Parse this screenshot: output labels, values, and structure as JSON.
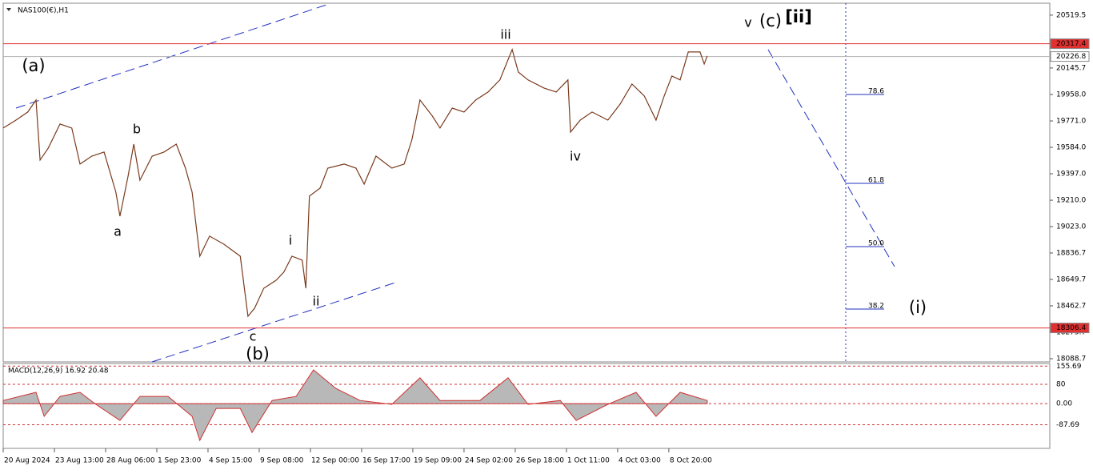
{
  "chart_data": {
    "type": "line",
    "title": "NAS100(€),H1",
    "color": "#7a3b1e",
    "xlim": [
      0,
      20.44
    ],
    "ylim": [
      18066,
      20604
    ],
    "xticks": [
      {
        "value": 0,
        "label": "20 Aug 2024"
      },
      {
        "value": 1,
        "label": "23 Aug 13:00"
      },
      {
        "value": 2,
        "label": "28 Aug 06:00"
      },
      {
        "value": 3,
        "label": "1 Sep 23:00"
      },
      {
        "value": 4,
        "label": "4 Sep 15:00"
      },
      {
        "value": 5,
        "label": "9 Sep 08:00"
      },
      {
        "value": 6,
        "label": "12 Sep 00:00"
      },
      {
        "value": 7,
        "label": "16 Sep 17:00"
      },
      {
        "value": 8,
        "label": "19 Sep 09:00"
      },
      {
        "value": 9,
        "label": "24 Sep 02:00"
      },
      {
        "value": 10,
        "label": "26 Sep 18:00"
      },
      {
        "value": 11,
        "label": "1 Oct 11:00"
      },
      {
        "value": 12,
        "label": "4 Oct 03:00"
      },
      {
        "value": 13,
        "label": "8 Oct 20:00"
      }
    ],
    "yticks": [
      20519.5,
      20145.7,
      {
        "value": 19958,
        "label": "19958.0"
      },
      {
        "value": 19771,
        "label": "19771.0"
      },
      {
        "value": 19584,
        "label": "19584.0"
      },
      {
        "value": 19397,
        "label": "19397.0"
      },
      {
        "value": 19210,
        "label": "19210.0"
      },
      {
        "value": 19023,
        "label": "19023.0"
      },
      18836.7,
      18649.7,
      18462.7,
      18275.7,
      18088.7
    ],
    "levels": [
      {
        "value": 20317.4,
        "color": "#e03030"
      },
      {
        "value": 20226.8,
        "color": "#b0b0b0"
      },
      {
        "value": 18306.4,
        "color": "#e03030"
      }
    ],
    "x": [
      0,
      0.25,
      0.48,
      0.64,
      0.72,
      0.88,
      1.11,
      1.34,
      1.5,
      1.73,
      1.97,
      2.2,
      2.28,
      2.44,
      2.55,
      2.67,
      2.91,
      3.14,
      3.38,
      3.56,
      3.69,
      3.84,
      4.03,
      4.31,
      4.63,
      4.78,
      4.91,
      5.09,
      5.33,
      5.48,
      5.64,
      5.84,
      5.91,
      5.98,
      6.19,
      6.34,
      6.66,
      6.89,
      7.05,
      7.28,
      7.59,
      7.83,
      7.98,
      8.14,
      8.38,
      8.53,
      8.77,
      9.0,
      9.23,
      9.47,
      9.7,
      9.94,
      10.06,
      10.25,
      10.56,
      10.8,
      11.03,
      11.08,
      11.27,
      11.5,
      11.81,
      12.05,
      12.28,
      12.52,
      12.75,
      12.91,
      13.06,
      13.22,
      13.38,
      13.61,
      13.69,
      13.75
    ],
    "values": [
      19721,
      19777,
      19834,
      19919,
      19494,
      19579,
      19749,
      19721,
      19466,
      19522,
      19551,
      19267,
      19097,
      19381,
      19607,
      19352,
      19522,
      19551,
      19607,
      19437,
      19267,
      18814,
      18956,
      18899,
      18814,
      18389,
      18446,
      18587,
      18644,
      18701,
      18814,
      18786,
      18587,
      19239,
      19296,
      19437,
      19466,
      19437,
      19324,
      19522,
      19437,
      19466,
      19636,
      19919,
      19806,
      19721,
      19862,
      19834,
      19919,
      19976,
      20061,
      20276,
      20117,
      20061,
      20004,
      19976,
      20061,
      19692,
      19777,
      19834,
      19777,
      19891,
      20032,
      19948,
      19777,
      19948,
      20089,
      20061,
      20259,
      20259,
      20174,
      20231
    ],
    "annotations": [
      "(a)",
      "b",
      "a",
      "c",
      "(b)",
      "i",
      "ii",
      "iii",
      "iv",
      "v",
      "(c)",
      "[ii]",
      "(i)",
      "78.6",
      "61.8",
      "50.0",
      "38.2"
    ],
    "indicator": {
      "type": "area",
      "title": "MACD(12,26,9) 16.92 20.48",
      "color": "#b8b8b8",
      "ylim": [
        -186,
        160
      ],
      "yticks": [
        155.69,
        80,
        {
          "value": 0,
          "label": "0.00"
        },
        -87.69
      ],
      "x": [
        0,
        0.64,
        0.8,
        1.11,
        1.5,
        1.81,
        2.28,
        2.67,
        3.22,
        3.69,
        3.84,
        4.16,
        4.63,
        4.86,
        5.25,
        5.72,
        6.06,
        6.5,
        6.97,
        7.59,
        8.14,
        8.53,
        9.31,
        9.86,
        10.25,
        10.88,
        11.19,
        11.81,
        12.36,
        12.75,
        13.22,
        13.75
      ],
      "values": [
        13,
        47,
        -53,
        30,
        47,
        -3,
        -70,
        30,
        30,
        -53,
        -153,
        -20,
        -20,
        -120,
        13,
        30,
        140,
        63,
        13,
        -3,
        107,
        13,
        13,
        107,
        -3,
        13,
        -70,
        -3,
        47,
        -53,
        47,
        13
      ]
    }
  }
}
